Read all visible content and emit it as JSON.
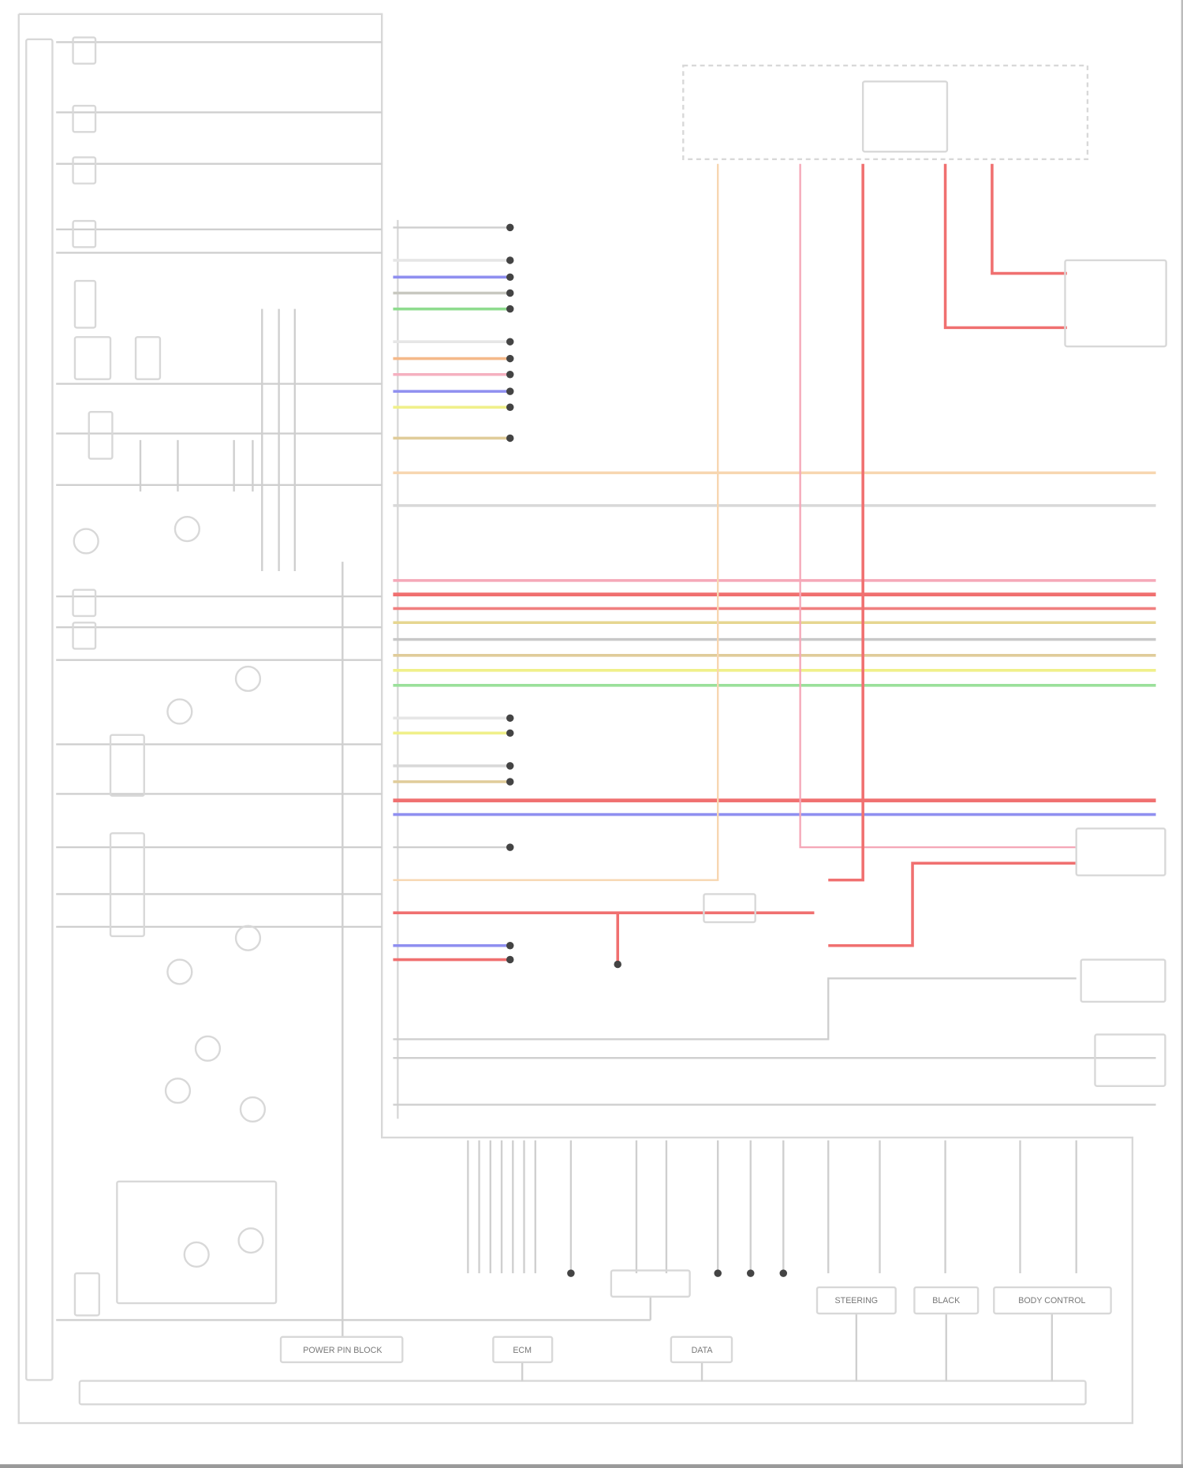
{
  "diagram": {
    "frame_color": "#d8d8d8",
    "wire_default_color": "#cfcfcf",
    "splice_color": "#444444",
    "short_wires": [
      {
        "color": "#e6e6e6"
      },
      {
        "color": "#8f8ff0"
      },
      {
        "color": "#c8c8c0"
      },
      {
        "color": "#8fdc8f"
      },
      {
        "color": "#e6e6e6"
      },
      {
        "color": "#f5b98a"
      },
      {
        "color": "#f5b0c0"
      },
      {
        "color": "#8f8ff0"
      },
      {
        "color": "#f0f08a"
      },
      {
        "color": "#e0cc9a"
      }
    ],
    "long_wires": [
      {
        "color": "#f7d6b0"
      },
      {
        "color": "#d8d8d8"
      },
      {
        "color": "#f5a8b8"
      },
      {
        "color": "#f07070"
      },
      {
        "color": "#f08080"
      },
      {
        "color": "#e6d690"
      },
      {
        "color": "#c8c8c8"
      },
      {
        "color": "#e0cc9a"
      },
      {
        "color": "#f0f08a"
      },
      {
        "color": "#9be09b"
      },
      {
        "color": "#f07070"
      },
      {
        "color": "#8f8ff0"
      }
    ],
    "compressor_wires": [
      {
        "color": "#e6e6e6"
      },
      {
        "color": "#f0f08a"
      },
      {
        "color": "#d8d8d8"
      },
      {
        "color": "#e0cc9a"
      }
    ],
    "lower_wires": [
      {
        "color": "#f07070"
      },
      {
        "color": "#8f8ff0"
      },
      {
        "color": "#f07070"
      }
    ],
    "vertical_feeds": [
      {
        "color": "#f7d6b0"
      },
      {
        "color": "#f5a8b8"
      },
      {
        "color": "#f07070"
      },
      {
        "color": "#f07070"
      },
      {
        "color": "#f07070"
      }
    ],
    "bottom_boxes": [
      {
        "label": "POWER PIN BLOCK"
      },
      {
        "label": "ECM"
      },
      {
        "label": "DATA"
      },
      {
        "label": "STEERING"
      },
      {
        "label": "BLACK"
      },
      {
        "label": "BODY CONTROL"
      }
    ]
  }
}
